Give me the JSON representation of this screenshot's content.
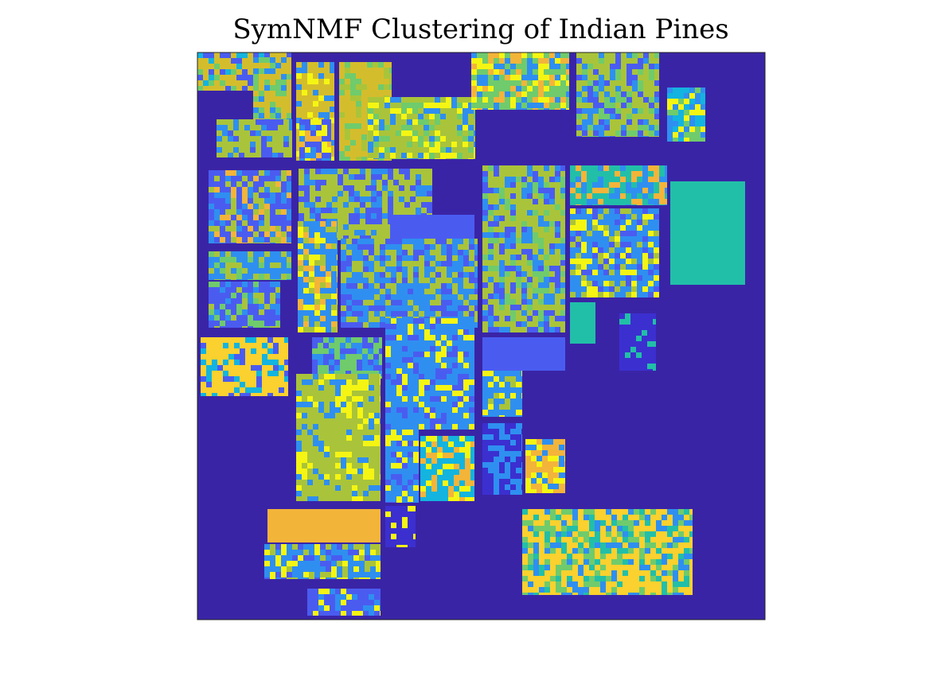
{
  "chart_data": {
    "type": "heatmap",
    "title": "SymNMF Clustering of Indian Pines",
    "xlabel": "",
    "ylabel": "",
    "grid": false,
    "axis_ticks": false,
    "colormap": "parula",
    "background_color": "#3a24a6",
    "palette": [
      "#4a5cf0",
      "#2f8ff0",
      "#13b4df",
      "#22bfa8",
      "#6fcb6c",
      "#a9c43a",
      "#d4bd2c",
      "#f3b43a",
      "#fad12e",
      "#f5f513",
      "#3b2fd0"
    ]
  }
}
